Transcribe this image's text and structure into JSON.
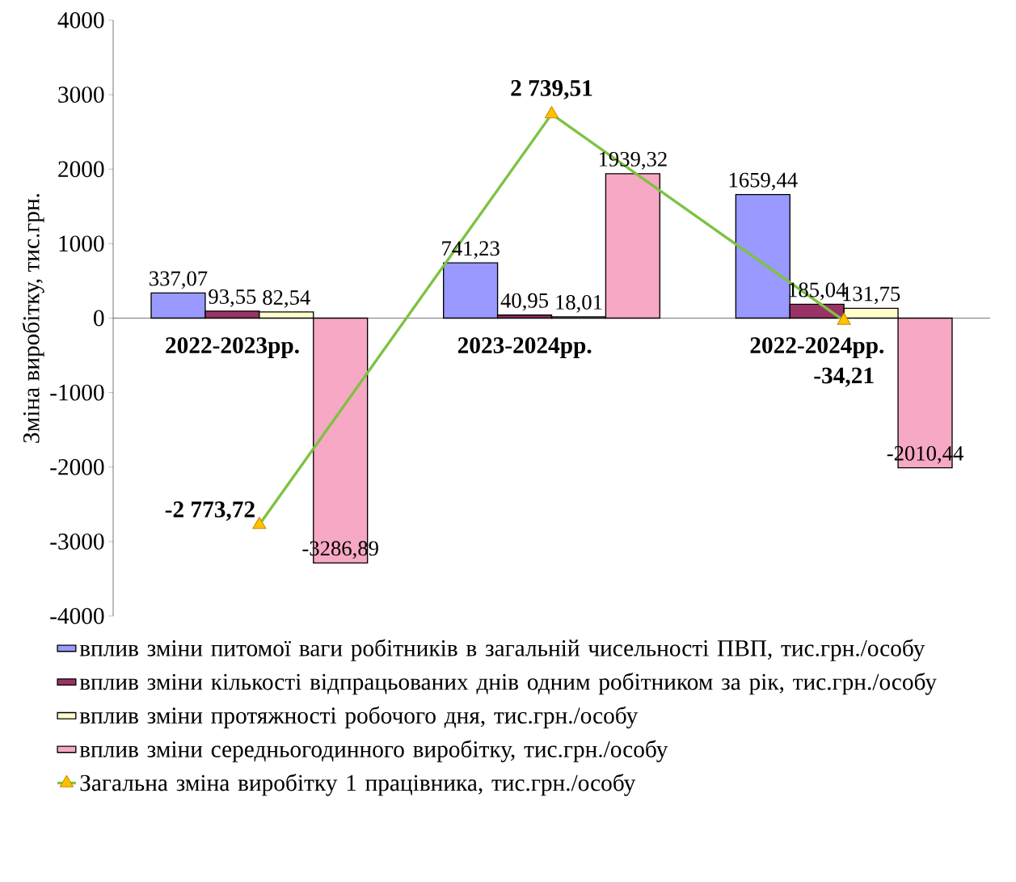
{
  "chart_data": {
    "type": "bar",
    "categories": [
      "2022-2023рр.",
      "2023-2024рр.",
      "2022-2024рр."
    ],
    "ylabel": "Зміна виробітку, тис.грн.",
    "ylim": [
      -4000,
      4000
    ],
    "yticks": [
      -4000,
      -3000,
      -2000,
      -1000,
      0,
      1000,
      2000,
      3000,
      4000
    ],
    "legend": "bottom",
    "series": [
      {
        "name": "вплив зміни питомої ваги робітників в загальній чисельності ПВП, тис.грн./особу",
        "color": "#9999ff",
        "values": [
          337.07,
          741.23,
          1659.44
        ],
        "value_labels": [
          "337,07",
          "741,23",
          "1659,44"
        ]
      },
      {
        "name": "вплив зміни кількості відпрацьованих днів одним робітником за рік, тис.грн./особу",
        "color": "#993366",
        "values": [
          93.55,
          40.95,
          185.04
        ],
        "value_labels": [
          "93,55",
          "40,95",
          "185,04"
        ]
      },
      {
        "name": "вплив зміни протяжності робочого дня, тис.грн./особу",
        "color": "#ffffcc",
        "values": [
          82.54,
          18.01,
          131.75
        ],
        "value_labels": [
          "82,54",
          "18,01",
          "131,75"
        ]
      },
      {
        "name": "вплив зміни середньогодинного виробітку, тис.грн./особу",
        "color": "#f7a8c4",
        "values": [
          -3286.89,
          1939.32,
          -2010.44
        ],
        "value_labels": [
          "-3286,89",
          "1939,32",
          "-2010,44"
        ]
      },
      {
        "name": "Загальна зміна виробітку 1 працівника, тис.грн./особу",
        "type": "line",
        "marker": "triangle",
        "color": "#7dc242",
        "values": [
          -2773.72,
          2739.51,
          -34.21
        ],
        "value_labels": [
          "-2 773,72",
          "2 739,51",
          "-34,21"
        ]
      }
    ]
  }
}
